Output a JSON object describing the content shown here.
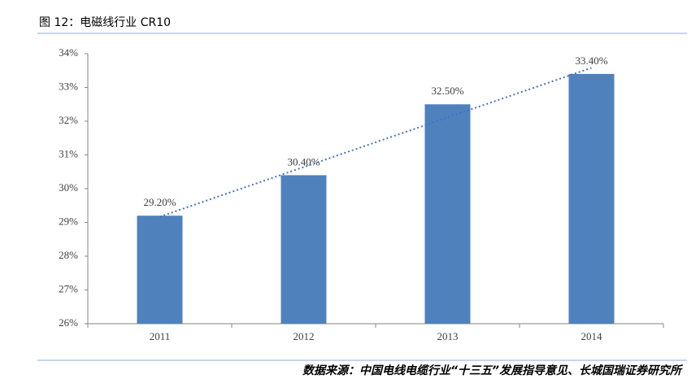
{
  "header": {
    "title": "图 12：电磁线行业 CR10"
  },
  "chart_data": {
    "type": "bar",
    "categories": [
      "2011",
      "2012",
      "2013",
      "2014"
    ],
    "values": [
      29.2,
      30.4,
      32.5,
      33.4
    ],
    "value_labels": [
      "29.20%",
      "30.40%",
      "32.50%",
      "33.40%"
    ],
    "color": "#4f81bd",
    "trendline": "linear",
    "trendline_color": "#4472c4",
    "ylim": [
      26,
      34
    ],
    "yticks": [
      {
        "value": 26,
        "label": "26%"
      },
      {
        "value": 27,
        "label": "27%"
      },
      {
        "value": 28,
        "label": "28%"
      },
      {
        "value": 29,
        "label": "29%"
      },
      {
        "value": 30,
        "label": "30%"
      },
      {
        "value": 31,
        "label": "31%"
      },
      {
        "value": 32,
        "label": "32%"
      },
      {
        "value": 33,
        "label": "33%"
      },
      {
        "value": 34,
        "label": "34%"
      }
    ],
    "grid": false
  },
  "footer": {
    "source": "数据来源：中国电线电缆行业“十三五”发展指导意见、长城国瑞证券研究所"
  }
}
